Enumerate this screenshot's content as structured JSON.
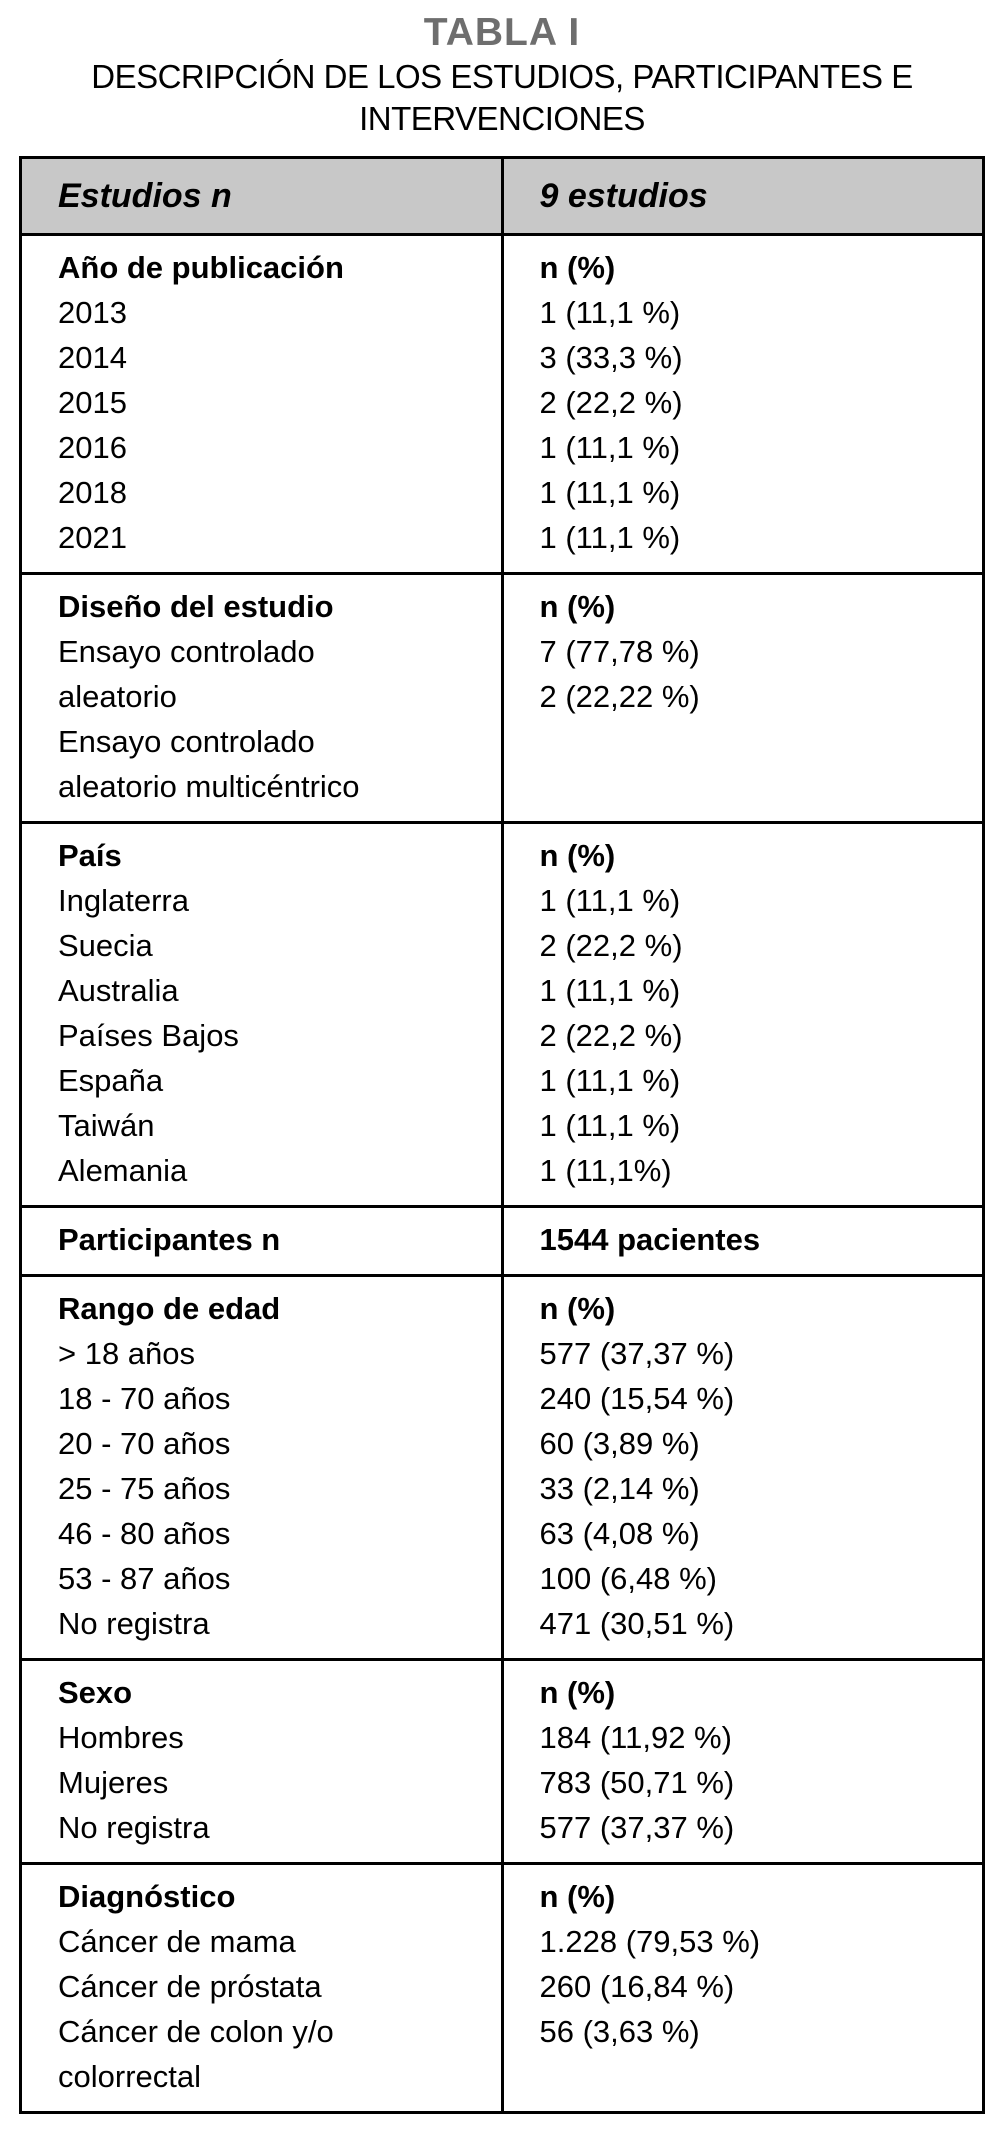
{
  "page": {
    "title": "TABLA I",
    "subtitle_lines": [
      "DESCRIPCIÓN DE LOS ESTUDIOS, PARTICIPANTES E",
      "INTERVENCIONES"
    ]
  },
  "colors": {
    "header_background": "#c8c8c8",
    "border": "#000000",
    "title_gray": "#6e6e6e"
  },
  "table": {
    "columns": [
      {
        "header": "Estudios n"
      },
      {
        "header": "9 estudios"
      }
    ],
    "sections": [
      {
        "label": "Año de publicación",
        "value_header": "n (%)",
        "rows": [
          {
            "label": "2013",
            "value": "1 (11,1 %)"
          },
          {
            "label": "2014",
            "value": "3 (33,3 %)"
          },
          {
            "label": "2015",
            "value": "2 (22,2 %)"
          },
          {
            "label": "2016",
            "value": "1 (11,1 %)"
          },
          {
            "label": "2018",
            "value": "1 (11,1 %)"
          },
          {
            "label": "2021",
            "value": "1 (11,1 %)"
          }
        ]
      },
      {
        "label": "Diseño del estudio",
        "value_header": "n (%)",
        "rows": [
          {
            "label": "Ensayo controlado aleatorio",
            "value": "7 (77,78 %)"
          },
          {
            "label": "Ensayo controlado aleatorio multicéntrico",
            "value": "2 (22,22 %)"
          }
        ]
      },
      {
        "label": "País",
        "value_header": "n (%)",
        "rows": [
          {
            "label": "Inglaterra",
            "value": "1 (11,1 %)"
          },
          {
            "label": "Suecia",
            "value": "2 (22,2 %)"
          },
          {
            "label": "Australia",
            "value": "1 (11,1 %)"
          },
          {
            "label": "Países Bajos",
            "value": "2 (22,2 %)"
          },
          {
            "label": "España",
            "value": "1 (11,1 %)"
          },
          {
            "label": "Taiwán",
            "value": "1 (11,1 %)"
          },
          {
            "label": "Alemania",
            "value": "1 (11,1%)"
          }
        ]
      },
      {
        "label": "Participantes n",
        "value_header": "1544 pacientes",
        "rows": []
      },
      {
        "label": "Rango de edad",
        "value_header": "n (%)",
        "rows": [
          {
            "label": "> 18 años",
            "value": "577 (37,37 %)"
          },
          {
            "label": "18 - 70 años",
            "value": "240 (15,54 %)"
          },
          {
            "label": "20 - 70 años",
            "value": "60 (3,89 %)"
          },
          {
            "label": "25 - 75 años",
            "value": "33 (2,14 %)"
          },
          {
            "label": "46 - 80 años",
            "value": "63 (4,08 %)"
          },
          {
            "label": "53 - 87 años",
            "value": "100 (6,48 %)"
          },
          {
            "label": "No registra",
            "value": "471 (30,51 %)"
          }
        ]
      },
      {
        "label": "Sexo",
        "value_header": "n (%)",
        "rows": [
          {
            "label": "Hombres",
            "value": "184 (11,92 %)"
          },
          {
            "label": "Mujeres",
            "value": "783 (50,71 %)"
          },
          {
            "label": "No registra",
            "value": "577 (37,37 %)"
          }
        ]
      },
      {
        "label": "Diagnóstico",
        "value_header": "n (%)",
        "rows": [
          {
            "label": "Cáncer de mama",
            "value": "1.228 (79,53 %)"
          },
          {
            "label": "Cáncer de próstata",
            "value": "260 (16,84 %)"
          },
          {
            "label": "Cáncer de colon y/o colorrectal",
            "value": "56 (3,63 %)"
          }
        ]
      }
    ]
  }
}
